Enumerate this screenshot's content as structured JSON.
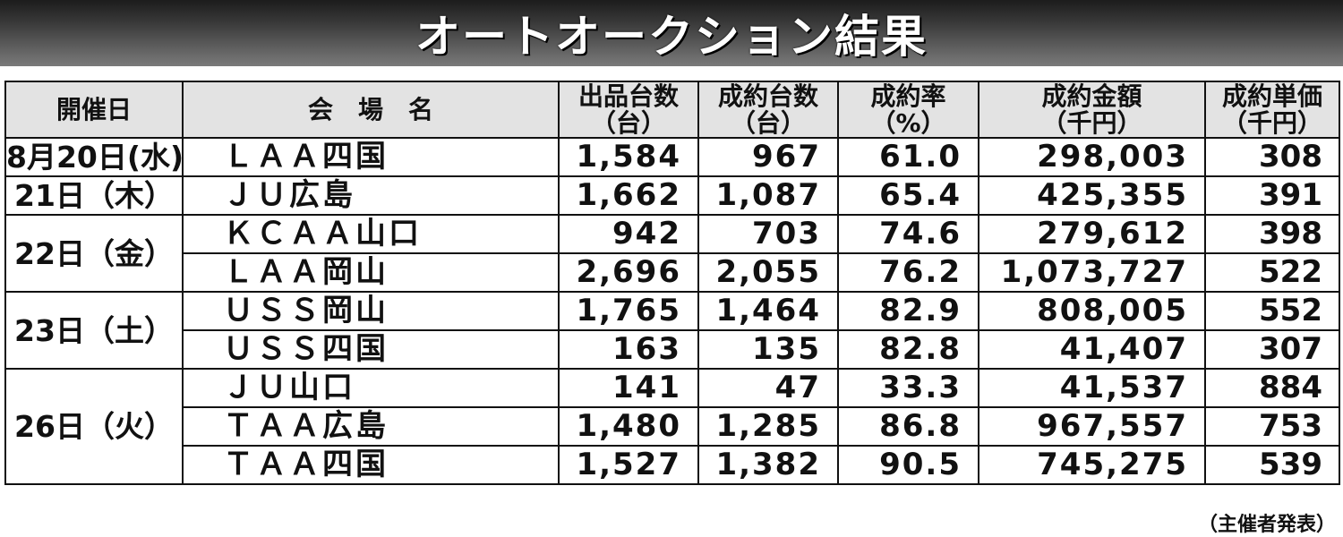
{
  "title": "オートオークション結果",
  "headers": {
    "date": "開催日",
    "venue": "会　場　名",
    "listed": "出品台数",
    "listed_unit": "（台）",
    "sold": "成約台数",
    "sold_unit": "（台）",
    "rate": "成約率",
    "rate_unit": "（%）",
    "amount": "成約金額",
    "amount_unit": "（千円）",
    "unit_price": "成約単価",
    "unit_price_unit": "（千円）"
  },
  "groups": [
    {
      "date": "8月20日(水)",
      "rows": [
        {
          "venue": "ＬＡＡ四国",
          "listed": "1,584",
          "sold": "967",
          "rate": "61.0",
          "amount": "298,003",
          "unit_price": "308"
        }
      ]
    },
    {
      "date": "21日（木）",
      "rows": [
        {
          "venue": "ＪＵ広島",
          "listed": "1,662",
          "sold": "1,087",
          "rate": "65.4",
          "amount": "425,355",
          "unit_price": "391"
        }
      ]
    },
    {
      "date": "22日（金）",
      "rows": [
        {
          "venue": "ＫＣＡＡ山口",
          "listed": "942",
          "sold": "703",
          "rate": "74.6",
          "amount": "279,612",
          "unit_price": "398"
        },
        {
          "venue": "ＬＡＡ岡山",
          "listed": "2,696",
          "sold": "2,055",
          "rate": "76.2",
          "amount": "1,073,727",
          "unit_price": "522"
        }
      ]
    },
    {
      "date": "23日（土）",
      "rows": [
        {
          "venue": "ＵＳＳ岡山",
          "listed": "1,765",
          "sold": "1,464",
          "rate": "82.9",
          "amount": "808,005",
          "unit_price": "552"
        },
        {
          "venue": "ＵＳＳ四国",
          "listed": "163",
          "sold": "135",
          "rate": "82.8",
          "amount": "41,407",
          "unit_price": "307"
        }
      ]
    },
    {
      "date": "26日（火）",
      "rows": [
        {
          "venue": "ＪＵ山口",
          "listed": "141",
          "sold": "47",
          "rate": "33.3",
          "amount": "41,537",
          "unit_price": "884"
        },
        {
          "venue": "ＴＡＡ広島",
          "listed": "1,480",
          "sold": "1,285",
          "rate": "86.8",
          "amount": "967,557",
          "unit_price": "753"
        },
        {
          "venue": "ＴＡＡ四国",
          "listed": "1,527",
          "sold": "1,382",
          "rate": "90.5",
          "amount": "745,275",
          "unit_price": "539"
        }
      ]
    }
  ],
  "footer": "（主催者発表）"
}
